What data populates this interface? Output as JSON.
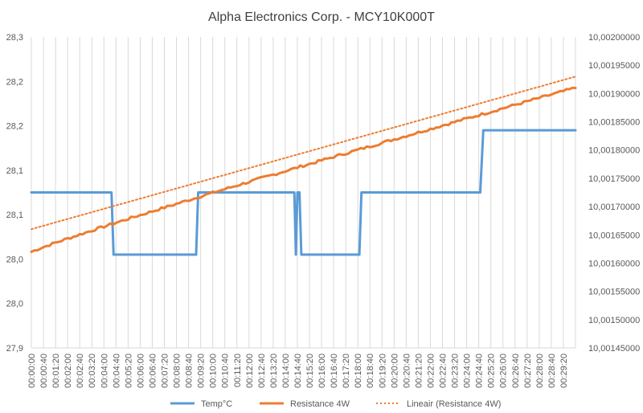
{
  "chart_data": {
    "type": "line",
    "title": "Alpha Electronics Corp. - MCY10K000T",
    "left_axis": {
      "min": 27.9,
      "max": 28.3,
      "tick_labels": [
        "27,9",
        "28,0",
        "28,0",
        "28,1",
        "28,1",
        "28,2",
        "28,2",
        "28,3"
      ]
    },
    "right_axis": {
      "min": 10.00145,
      "max": 10.002,
      "tick_labels": [
        "10,00145000",
        "10,00150000",
        "10,00155000",
        "10,00160000",
        "10,00165000",
        "10,00170000",
        "10,00175000",
        "10,00180000",
        "10,00185000",
        "10,00190000",
        "10,00195000",
        "10,00200000"
      ]
    },
    "x_axis": {
      "tick_labels": [
        "00:00:00",
        "00:00:40",
        "00:01:20",
        "00:02:00",
        "00:02:40",
        "00:03:20",
        "00:04:00",
        "00:04:40",
        "00:05:20",
        "00:06:00",
        "00:06:40",
        "00:07:20",
        "00:08:00",
        "00:08:40",
        "00:09:20",
        "00:10:00",
        "00:10:40",
        "00:11:20",
        "00:12:00",
        "00:12:40",
        "00:13:20",
        "00:14:00",
        "00:14:40",
        "00:15:20",
        "00:16:00",
        "00:16:40",
        "00:17:20",
        "00:18:00",
        "00:18:40",
        "00:19:20",
        "00:20:00",
        "00:20:40",
        "00:21:20",
        "00:22:00",
        "00:22:40",
        "00:23:20",
        "00:24:00",
        "00:24:40",
        "00:25:20",
        "00:26:00",
        "00:26:40",
        "00:27:20",
        "00:28:00",
        "00:28:40",
        "00:29:20"
      ],
      "end": "00:30:00"
    },
    "series": [
      {
        "name": "Temp°C",
        "axis": "left",
        "color": "#5b9bd5",
        "points": [
          [
            "00:00:00",
            28.1
          ],
          [
            "00:04:25",
            28.1
          ],
          [
            "00:04:32",
            28.02
          ],
          [
            "00:09:05",
            28.02
          ],
          [
            "00:09:12",
            28.1
          ],
          [
            "00:14:30",
            28.1
          ],
          [
            "00:14:35",
            28.02
          ],
          [
            "00:14:40",
            28.1
          ],
          [
            "00:14:47",
            28.1
          ],
          [
            "00:14:53",
            28.02
          ],
          [
            "00:18:05",
            28.02
          ],
          [
            "00:18:12",
            28.1
          ],
          [
            "00:24:45",
            28.1
          ],
          [
            "00:24:55",
            28.18
          ],
          [
            "00:30:00",
            28.18
          ]
        ]
      },
      {
        "name": "Resistance 4W",
        "axis": "right",
        "color": "#ed7d31",
        "start": 10.00162,
        "end": 10.00191
      },
      {
        "name": "Lineair (Resistance 4W)",
        "axis": "right",
        "color": "#ed7d31",
        "style": "dotted",
        "points": [
          [
            "00:00:00",
            10.00166
          ],
          [
            "00:30:00",
            10.00193
          ]
        ]
      }
    ],
    "legend_position": "bottom",
    "grid": "vertical"
  }
}
